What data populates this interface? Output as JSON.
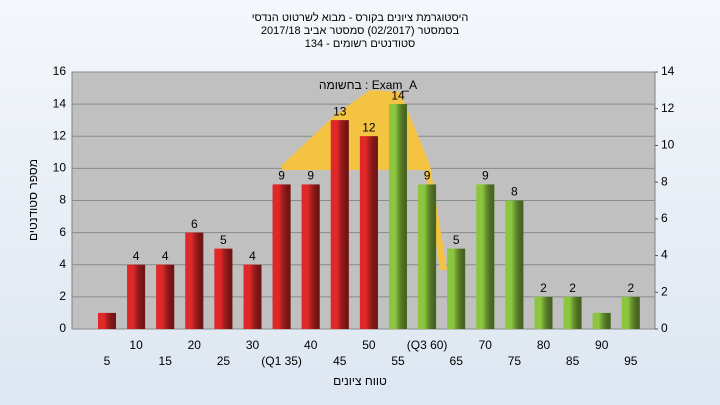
{
  "chart_data": {
    "type": "bar",
    "title": [
      "היסטוגרמת ציונים בקורס - מבוא לשרטוט הנדסי",
      "בסמסטר  (02/2017)  סמסטר אביב 2017/18",
      "סטודנטים רשומים - 134"
    ],
    "annotation": "בחשומה : Exam_A",
    "x_label": "טווח ציונים",
    "y_label": "מספר סטודנטים",
    "categories": [
      "5",
      "10",
      "15",
      "20",
      "25",
      "30",
      "(Q1 35)",
      "40",
      "45",
      "50",
      "55",
      "(Q3 60)",
      "65",
      "70",
      "75",
      "80",
      "85",
      "90",
      "95"
    ],
    "values": [
      1,
      4,
      4,
      6,
      5,
      4,
      9,
      9,
      13,
      12,
      14,
      9,
      5,
      9,
      8,
      2,
      2,
      1,
      2
    ],
    "value_labels": [
      null,
      "4",
      "4",
      "6",
      "5",
      "4",
      "9",
      "9",
      "13",
      "12",
      "14",
      "9",
      "5",
      "9",
      "8",
      "2",
      "2",
      null,
      "2"
    ],
    "colors": [
      "#e02828",
      "#e02828",
      "#e02828",
      "#e02828",
      "#e02828",
      "#e02828",
      "#e02828",
      "#e02828",
      "#e02828",
      "#e02828",
      "#8cc63f",
      "#8cc63f",
      "#8cc63f",
      "#8cc63f",
      "#8cc63f",
      "#8cc63f",
      "#8cc63f",
      "#8cc63f",
      "#8cc63f"
    ],
    "ylim": [
      0,
      16
    ],
    "yticks": [
      0,
      2,
      4,
      6,
      8,
      10,
      12,
      14,
      16
    ],
    "y2lim": [
      0,
      14
    ],
    "y2ticks": [
      0,
      2,
      4,
      6,
      8,
      10,
      12,
      14
    ],
    "grid": true
  }
}
